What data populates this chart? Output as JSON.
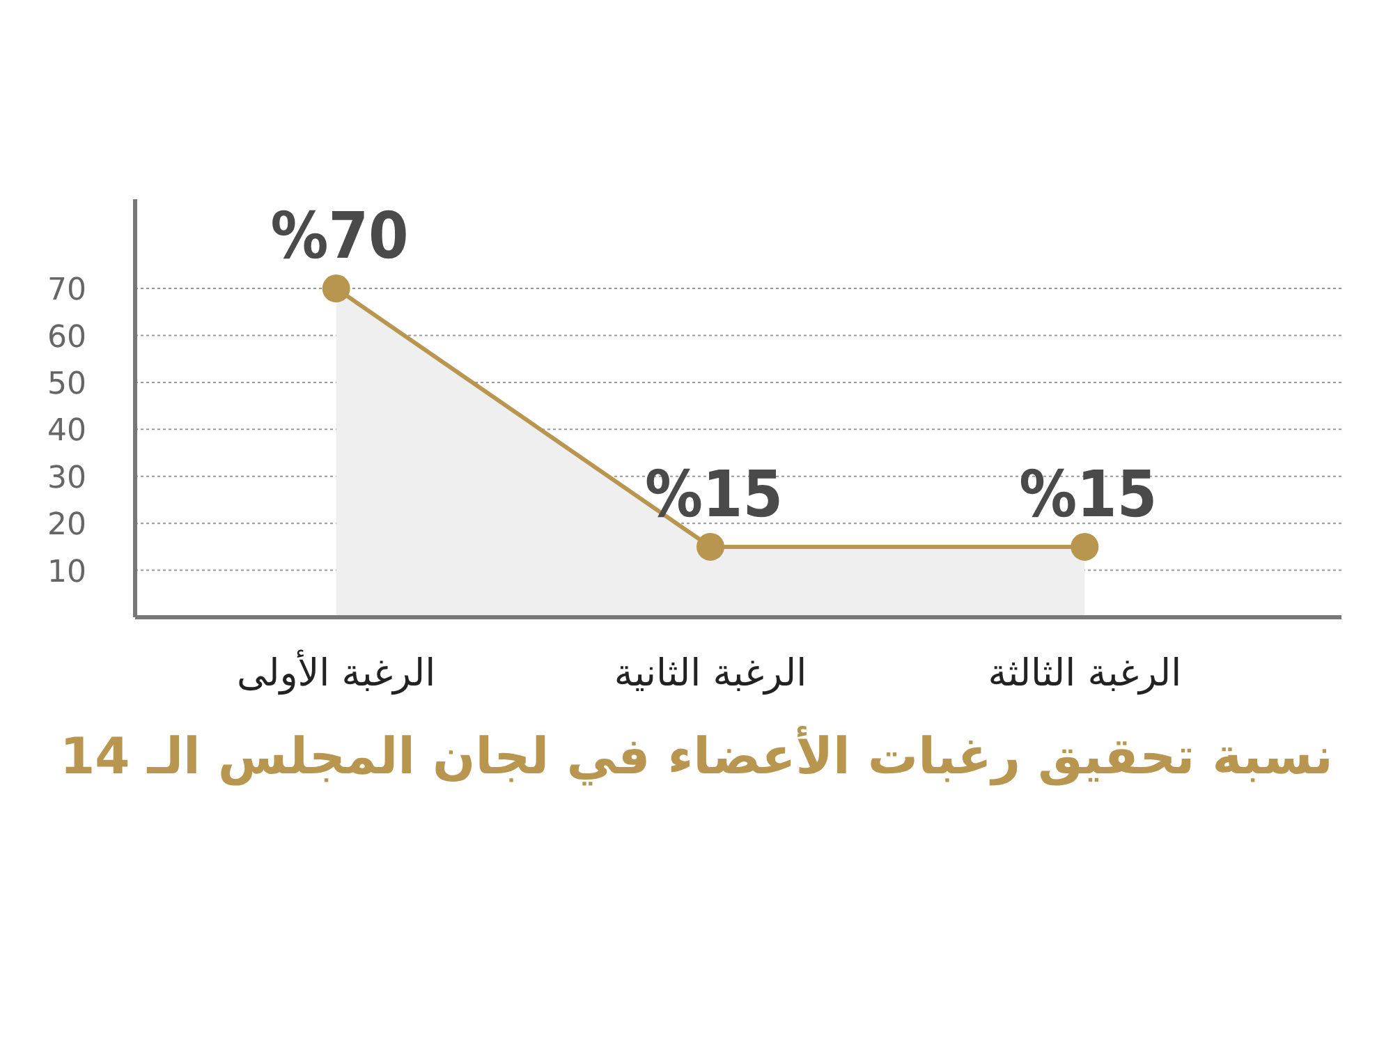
{
  "chart_data": {
    "type": "area",
    "title": "نسبة تحقيق رغبات الأعضاء في لجان المجلس الـ 14",
    "categories": [
      "الرغبة الأولى",
      "الرغبة الثانية",
      "الرغبة الثالثة"
    ],
    "series": [
      {
        "color": "#b8964f",
        "values": [
          70,
          15,
          15
        ],
        "value_labels": [
          "%70",
          "%15",
          "%15"
        ]
      }
    ],
    "ylim": [
      0,
      89
    ],
    "yticks": [
      10,
      20,
      30,
      40,
      50,
      60,
      70
    ],
    "grid": "y",
    "marker": "circle"
  }
}
